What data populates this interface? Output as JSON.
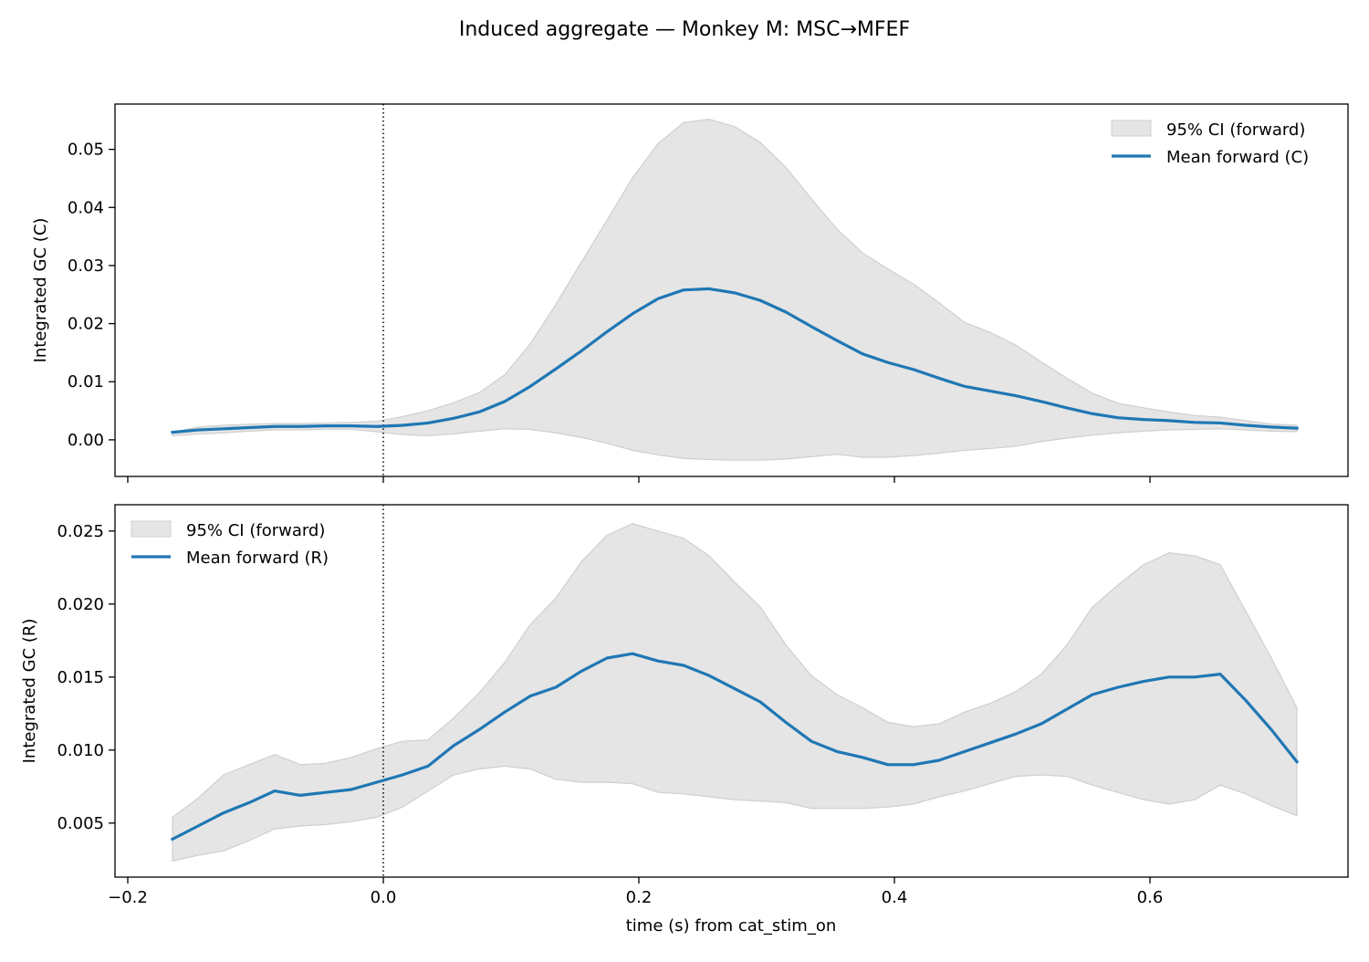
{
  "figure": {
    "title": "Induced aggregate — Monkey M: MSC→MFEF",
    "xlabel": "time (s) from cat_stim_on"
  },
  "colors": {
    "mean_line": "#1f77b4",
    "ci_fill": "#e5e5e5",
    "ci_edge": "#cfcfcf",
    "event_line": "#000000"
  },
  "chart_data": [
    {
      "type": "line",
      "panel": "top",
      "ylabel": "Integrated GC (C)",
      "xlim": [
        -0.21,
        0.755
      ],
      "ylim": [
        -0.0063,
        0.0578
      ],
      "xticks": [
        -0.2,
        0.0,
        0.2,
        0.4,
        0.6
      ],
      "xtick_labels_shown": false,
      "yticks": [
        0.0,
        0.01,
        0.02,
        0.03,
        0.04,
        0.05
      ],
      "ytick_labels": [
        "0.00",
        "0.01",
        "0.02",
        "0.03",
        "0.04",
        "0.05"
      ],
      "event_line_x": 0.0,
      "legend_placement": "upper right",
      "series": [
        {
          "name": "Mean forward (C)",
          "kind": "line",
          "x": [
            -0.165,
            -0.145,
            -0.125,
            -0.105,
            -0.085,
            -0.065,
            -0.045,
            -0.025,
            -0.005,
            0.015,
            0.035,
            0.055,
            0.075,
            0.095,
            0.115,
            0.135,
            0.155,
            0.175,
            0.195,
            0.215,
            0.235,
            0.255,
            0.275,
            0.295,
            0.315,
            0.335,
            0.355,
            0.375,
            0.395,
            0.415,
            0.435,
            0.455,
            0.475,
            0.495,
            0.515,
            0.535,
            0.555,
            0.575,
            0.595,
            0.615,
            0.635,
            0.655,
            0.675,
            0.695,
            0.715
          ],
          "y": [
            0.0013,
            0.0017,
            0.0019,
            0.0021,
            0.0023,
            0.0023,
            0.0024,
            0.0024,
            0.0023,
            0.0025,
            0.0029,
            0.0037,
            0.0048,
            0.0066,
            0.0092,
            0.0122,
            0.0153,
            0.0186,
            0.0217,
            0.0243,
            0.0258,
            0.026,
            0.0253,
            0.024,
            0.022,
            0.0195,
            0.0171,
            0.0148,
            0.0133,
            0.0121,
            0.0106,
            0.0092,
            0.0084,
            0.0076,
            0.0066,
            0.0055,
            0.0045,
            0.0038,
            0.0035,
            0.0033,
            0.003,
            0.0029,
            0.0025,
            0.0022,
            0.002
          ]
        },
        {
          "name": "95% CI (forward)",
          "kind": "band",
          "x": [
            -0.165,
            -0.145,
            -0.125,
            -0.105,
            -0.085,
            -0.065,
            -0.045,
            -0.025,
            -0.005,
            0.015,
            0.035,
            0.055,
            0.075,
            0.095,
            0.115,
            0.135,
            0.155,
            0.175,
            0.195,
            0.215,
            0.235,
            0.255,
            0.275,
            0.295,
            0.315,
            0.335,
            0.355,
            0.375,
            0.395,
            0.415,
            0.435,
            0.455,
            0.475,
            0.495,
            0.515,
            0.535,
            0.555,
            0.575,
            0.595,
            0.615,
            0.635,
            0.655,
            0.675,
            0.695,
            0.715
          ],
          "lower": [
            0.0007,
            0.001,
            0.0012,
            0.0015,
            0.0017,
            0.0017,
            0.0018,
            0.0018,
            0.0014,
            0.0009,
            0.0007,
            0.001,
            0.0015,
            0.0019,
            0.0018,
            0.0012,
            0.0004,
            -0.0006,
            -0.0018,
            -0.0026,
            -0.0032,
            -0.0034,
            -0.0035,
            -0.0035,
            -0.0033,
            -0.0029,
            -0.0025,
            -0.003,
            -0.003,
            -0.0027,
            -0.0023,
            -0.0018,
            -0.0015,
            -0.0011,
            -0.0003,
            0.0003,
            0.0008,
            0.0012,
            0.0015,
            0.0017,
            0.0018,
            0.0019,
            0.0017,
            0.0015,
            0.0014
          ],
          "upper": [
            0.0013,
            0.0022,
            0.0025,
            0.0027,
            0.0028,
            0.0028,
            0.0029,
            0.003,
            0.0032,
            0.004,
            0.005,
            0.0064,
            0.0081,
            0.0112,
            0.0165,
            0.0233,
            0.0306,
            0.0378,
            0.0451,
            0.051,
            0.0546,
            0.0552,
            0.0539,
            0.0512,
            0.0469,
            0.0415,
            0.0363,
            0.0322,
            0.0294,
            0.0268,
            0.0236,
            0.0202,
            0.0185,
            0.0163,
            0.0134,
            0.0106,
            0.008,
            0.0063,
            0.0055,
            0.0048,
            0.0042,
            0.0039,
            0.0033,
            0.0027,
            0.0025
          ]
        }
      ]
    },
    {
      "type": "line",
      "panel": "bottom",
      "ylabel": "Integrated GC (R)",
      "xlim": [
        -0.21,
        0.755
      ],
      "ylim": [
        0.0013,
        0.0268
      ],
      "xticks": [
        -0.2,
        0.0,
        0.2,
        0.4,
        0.6
      ],
      "xtick_labels": [
        "−0.2",
        "0.0",
        "0.2",
        "0.4",
        "0.6"
      ],
      "yticks": [
        0.005,
        0.01,
        0.015,
        0.02,
        0.025
      ],
      "ytick_labels": [
        "0.005",
        "0.010",
        "0.015",
        "0.020",
        "0.025"
      ],
      "event_line_x": 0.0,
      "legend_placement": "upper left",
      "series": [
        {
          "name": "Mean forward (R)",
          "kind": "line",
          "x": [
            -0.165,
            -0.145,
            -0.125,
            -0.105,
            -0.085,
            -0.065,
            -0.045,
            -0.025,
            -0.005,
            0.015,
            0.035,
            0.055,
            0.075,
            0.095,
            0.115,
            0.135,
            0.155,
            0.175,
            0.195,
            0.215,
            0.235,
            0.255,
            0.275,
            0.295,
            0.315,
            0.335,
            0.355,
            0.375,
            0.395,
            0.415,
            0.435,
            0.455,
            0.475,
            0.495,
            0.515,
            0.535,
            0.555,
            0.575,
            0.595,
            0.615,
            0.635,
            0.655,
            0.675,
            0.695,
            0.715
          ],
          "y": [
            0.0039,
            0.0048,
            0.0057,
            0.0064,
            0.0072,
            0.0069,
            0.0071,
            0.0073,
            0.0078,
            0.0083,
            0.0089,
            0.0103,
            0.0114,
            0.0126,
            0.0137,
            0.0143,
            0.0154,
            0.0163,
            0.0166,
            0.0161,
            0.0158,
            0.0151,
            0.0142,
            0.0133,
            0.0119,
            0.0106,
            0.0099,
            0.0095,
            0.009,
            0.009,
            0.0093,
            0.0099,
            0.0105,
            0.0111,
            0.0118,
            0.0128,
            0.0138,
            0.0143,
            0.0147,
            0.015,
            0.015,
            0.0152,
            0.0134,
            0.0114,
            0.0092
          ]
        },
        {
          "name": "95% CI (forward)",
          "kind": "band",
          "x": [
            -0.165,
            -0.145,
            -0.125,
            -0.105,
            -0.085,
            -0.065,
            -0.045,
            -0.025,
            -0.005,
            0.015,
            0.035,
            0.055,
            0.075,
            0.095,
            0.115,
            0.135,
            0.155,
            0.175,
            0.195,
            0.215,
            0.235,
            0.255,
            0.275,
            0.295,
            0.315,
            0.335,
            0.355,
            0.375,
            0.395,
            0.415,
            0.435,
            0.455,
            0.475,
            0.495,
            0.515,
            0.535,
            0.555,
            0.575,
            0.595,
            0.615,
            0.635,
            0.655,
            0.675,
            0.695,
            0.715
          ],
          "lower": [
            0.0024,
            0.0028,
            0.0031,
            0.0038,
            0.0046,
            0.0048,
            0.0049,
            0.0051,
            0.0054,
            0.0061,
            0.0072,
            0.0083,
            0.0087,
            0.0089,
            0.0087,
            0.008,
            0.0078,
            0.0078,
            0.0077,
            0.0071,
            0.007,
            0.0068,
            0.0066,
            0.0065,
            0.0064,
            0.006,
            0.006,
            0.006,
            0.0061,
            0.0063,
            0.0068,
            0.0072,
            0.0077,
            0.0082,
            0.0083,
            0.0082,
            0.0076,
            0.0071,
            0.0066,
            0.0063,
            0.0066,
            0.0076,
            0.007,
            0.0062,
            0.0055
          ],
          "upper": [
            0.0054,
            0.0067,
            0.0083,
            0.009,
            0.0097,
            0.009,
            0.0091,
            0.0095,
            0.0101,
            0.0106,
            0.0107,
            0.0122,
            0.0139,
            0.016,
            0.0186,
            0.0204,
            0.0229,
            0.0247,
            0.0255,
            0.025,
            0.0245,
            0.0233,
            0.0215,
            0.0198,
            0.0172,
            0.0151,
            0.0138,
            0.0129,
            0.0119,
            0.0116,
            0.0118,
            0.0126,
            0.0132,
            0.014,
            0.0152,
            0.0172,
            0.0198,
            0.0213,
            0.0227,
            0.0235,
            0.0233,
            0.0227,
            0.0195,
            0.0163,
            0.0129
          ]
        }
      ]
    }
  ]
}
